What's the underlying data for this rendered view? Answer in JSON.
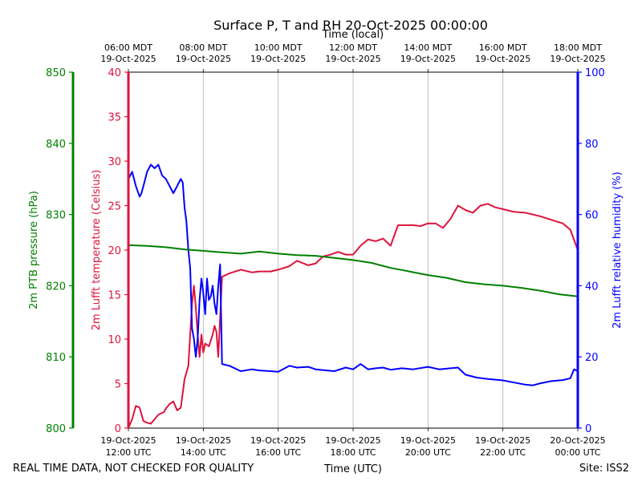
{
  "chart_data": {
    "type": "line",
    "title": "Surface P, T and RH 20-Oct-2025 00:00:00",
    "top_axis_label": "Time (local)",
    "xlabel": "Time (UTC)",
    "footer_left": "REAL TIME DATA, NOT CHECKED FOR QUALITY",
    "footer_right": "Site: ISS2",
    "x_range": [
      12,
      24
    ],
    "bottom_ticks": [
      {
        "date": "19-Oct-2025",
        "time": "12:00 UTC"
      },
      {
        "date": "19-Oct-2025",
        "time": "14:00 UTC"
      },
      {
        "date": "19-Oct-2025",
        "time": "16:00 UTC"
      },
      {
        "date": "19-Oct-2025",
        "time": "18:00 UTC"
      },
      {
        "date": "19-Oct-2025",
        "time": "20:00 UTC"
      },
      {
        "date": "19-Oct-2025",
        "time": "22:00 UTC"
      },
      {
        "date": "20-Oct-2025",
        "time": "00:00 UTC"
      }
    ],
    "top_ticks": [
      {
        "time": "06:00 MDT",
        "date": "19-Oct-2025"
      },
      {
        "time": "08:00 MDT",
        "date": "19-Oct-2025"
      },
      {
        "time": "10:00 MDT",
        "date": "19-Oct-2025"
      },
      {
        "time": "12:00 MDT",
        "date": "19-Oct-2025"
      },
      {
        "time": "14:00 MDT",
        "date": "19-Oct-2025"
      },
      {
        "time": "16:00 MDT",
        "date": "19-Oct-2025"
      },
      {
        "time": "18:00 MDT",
        "date": "19-Oct-2025"
      }
    ],
    "axes": {
      "pressure": {
        "label": "2m PTB pressure (hPa)",
        "color": "#008000",
        "range": [
          800,
          850
        ],
        "ticks": [
          "800",
          "810",
          "820",
          "830",
          "840",
          "850"
        ]
      },
      "temperature": {
        "label": "2m Lufft temperature (Celsius)",
        "color": "#dc143c",
        "range": [
          0,
          40
        ],
        "ticks": [
          "0",
          "5",
          "10",
          "15",
          "20",
          "25",
          "30",
          "35",
          "40"
        ]
      },
      "humidity": {
        "label": "2m Lufft relative humidity (%)",
        "color": "#0000ff",
        "range": [
          0,
          100
        ],
        "ticks": [
          "0",
          "20",
          "40",
          "60",
          "80",
          "100"
        ]
      }
    },
    "grid": "vertical",
    "series": [
      {
        "axis": "temperature",
        "color": "#dc143c",
        "x": [
          12.0,
          12.1,
          12.2,
          12.3,
          12.4,
          12.5,
          12.6,
          12.8,
          12.95,
          13.0,
          13.1,
          13.2,
          13.3,
          13.4,
          13.5,
          13.6,
          13.7,
          13.75,
          13.8,
          13.85,
          13.9,
          13.95,
          14.0,
          14.05,
          14.15,
          14.25,
          14.3,
          14.35,
          14.4,
          14.5,
          14.7,
          15.0,
          15.3,
          15.5,
          15.8,
          16.0,
          16.3,
          16.5,
          16.8,
          17.0,
          17.2,
          17.4,
          17.6,
          17.8,
          18.0,
          18.2,
          18.4,
          18.6,
          18.8,
          19.0,
          19.2,
          19.4,
          19.6,
          19.8,
          20.0,
          20.2,
          20.4,
          20.6,
          20.8,
          21.0,
          21.2,
          21.4,
          21.6,
          21.8,
          22.0,
          22.3,
          22.6,
          23.0,
          23.3,
          23.6,
          23.8,
          24.0
        ],
        "values": [
          0,
          1,
          2.5,
          2.3,
          0.8,
          0.6,
          0.5,
          1.5,
          1.8,
          2.2,
          2.7,
          3.0,
          2.0,
          2.3,
          5.5,
          7.0,
          14.0,
          16.0,
          13.5,
          10.5,
          8.0,
          10.5,
          8.5,
          9.5,
          9.2,
          10.5,
          11.5,
          10.8,
          8.0,
          17.0,
          17.4,
          17.8,
          17.5,
          17.6,
          17.6,
          17.8,
          18.2,
          18.8,
          18.3,
          18.5,
          19.3,
          19.5,
          19.8,
          19.5,
          19.5,
          20.5,
          21.2,
          21.0,
          21.3,
          20.5,
          22.8,
          22.8,
          22.8,
          22.7,
          23.0,
          23.0,
          22.5,
          23.5,
          25.0,
          24.5,
          24.2,
          25.0,
          25.2,
          24.8,
          24.6,
          24.3,
          24.2,
          23.8,
          23.4,
          23.0,
          22.3,
          20.0
        ]
      },
      {
        "axis": "humidity",
        "color": "#0000ff",
        "x": [
          12.0,
          12.1,
          12.2,
          12.3,
          12.35,
          12.4,
          12.5,
          12.6,
          12.7,
          12.8,
          12.9,
          13.0,
          13.1,
          13.2,
          13.3,
          13.4,
          13.45,
          13.5,
          13.55,
          13.6,
          13.65,
          13.7,
          13.75,
          13.8,
          13.85,
          13.9,
          13.95,
          14.0,
          14.05,
          14.1,
          14.15,
          14.2,
          14.25,
          14.3,
          14.35,
          14.4,
          14.45,
          14.5,
          14.7,
          15.0,
          15.3,
          15.5,
          15.8,
          16.0,
          16.3,
          16.5,
          16.8,
          17.0,
          17.3,
          17.5,
          17.8,
          18.0,
          18.2,
          18.4,
          18.6,
          18.8,
          19.0,
          19.3,
          19.6,
          20.0,
          20.3,
          20.6,
          20.8,
          21.0,
          21.3,
          21.6,
          22.0,
          22.3,
          22.6,
          22.8,
          23.0,
          23.3,
          23.6,
          23.8,
          23.9,
          24.0
        ],
        "values": [
          70,
          72,
          68,
          65,
          66,
          68,
          72,
          74,
          73,
          74,
          71,
          70,
          68,
          66,
          68,
          70,
          69,
          62,
          58,
          50,
          45,
          28,
          25,
          20,
          25,
          36,
          42,
          38,
          32,
          42,
          36,
          37,
          40,
          35,
          32,
          40,
          46,
          18,
          17.5,
          16,
          16.5,
          16.2,
          16,
          15.8,
          17.5,
          17,
          17.2,
          16.5,
          16.2,
          16,
          17,
          16.5,
          18,
          16.5,
          16.8,
          17,
          16.4,
          16.8,
          16.5,
          17.2,
          16.5,
          16.8,
          17,
          15,
          14.2,
          13.8,
          13.4,
          12.8,
          12.2,
          12.0,
          12.6,
          13.2,
          13.5,
          14.0,
          16.5,
          16.0
        ]
      },
      {
        "axis": "pressure",
        "color": "#008000",
        "x": [
          12.0,
          12.5,
          13.0,
          13.5,
          14.0,
          14.5,
          15.0,
          15.5,
          16.0,
          16.5,
          17.0,
          17.5,
          18.0,
          18.5,
          19.0,
          19.5,
          20.0,
          20.5,
          21.0,
          21.5,
          22.0,
          22.5,
          23.0,
          23.5,
          24.0
        ],
        "values": [
          825.7,
          825.6,
          825.4,
          825.1,
          824.9,
          824.7,
          824.5,
          824.8,
          824.5,
          824.3,
          824.2,
          823.9,
          823.6,
          823.2,
          822.5,
          822.0,
          821.5,
          821.1,
          820.5,
          820.2,
          820.0,
          819.7,
          819.3,
          818.8,
          818.5
        ]
      }
    ]
  }
}
